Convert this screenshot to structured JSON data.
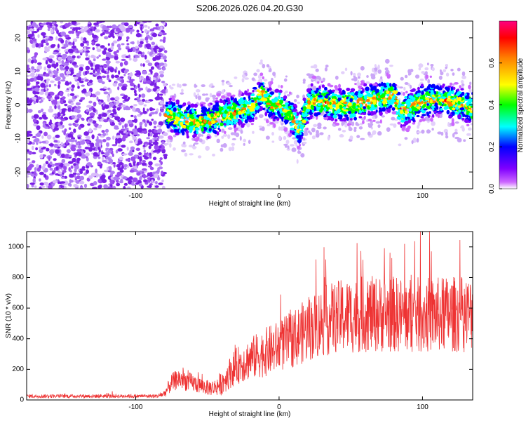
{
  "title": "S206.2026.026.04.20.G30",
  "chart_data": [
    {
      "type": "heatmap",
      "xlabel": "Height of straight line (km)",
      "ylabel": "Frequency (Hz)",
      "xlim": [
        -176,
        135
      ],
      "ylim": [
        -25,
        25
      ],
      "x_ticks": [
        -100,
        0,
        100
      ],
      "x_tick_labels": [
        "-100",
        "0",
        "100"
      ],
      "y_ticks": [
        -20,
        -10,
        0,
        10,
        20
      ],
      "y_tick_labels": [
        "-20",
        "-10",
        "0",
        "10",
        "20"
      ],
      "colorbar": {
        "label": "Normalized spectral amplitude",
        "range": [
          0,
          0.8
        ],
        "ticks": [
          0.0,
          0.2,
          0.4,
          0.6
        ],
        "tick_labels": [
          "0.0",
          "0.2",
          "0.4",
          "0.6"
        ],
        "colors": [
          "#ffffff",
          "#cc66ff",
          "#8000ff",
          "#0000ff",
          "#00ffff",
          "#00ff00",
          "#ffff00",
          "#ff8000",
          "#ff0000",
          "#ff0080"
        ]
      },
      "noise_region_x": [
        -176,
        -79
      ],
      "ridge_center": {
        "x": [
          -80,
          -70,
          -60,
          -50,
          -40,
          -30,
          -20,
          -15,
          -12,
          -8,
          -5,
          0,
          5,
          10,
          14,
          18,
          22,
          30,
          40,
          50,
          60,
          70,
          80,
          85,
          90,
          100,
          110,
          120,
          130,
          135
        ],
        "y": [
          -3,
          -4,
          -5,
          -5,
          -3,
          -2,
          -1,
          2,
          4,
          1,
          0,
          0,
          -2,
          -4,
          -8,
          -2,
          1,
          1,
          0,
          0,
          1,
          2,
          3,
          -2,
          -1,
          1,
          2,
          1,
          0,
          -1
        ]
      }
    },
    {
      "type": "line",
      "xlabel": "Height of straight line (km)",
      "ylabel": "SNR (10 * v/v)",
      "xlim": [
        -176,
        135
      ],
      "ylim": [
        0,
        1100
      ],
      "x_ticks": [
        -100,
        0,
        100
      ],
      "x_tick_labels": [
        "-100",
        "0",
        "100"
      ],
      "y_ticks": [
        0,
        200,
        400,
        600,
        800,
        1000
      ],
      "y_tick_labels": [
        "0",
        "200",
        "400",
        "600",
        "800",
        "1000"
      ],
      "color": "#ee3333",
      "envelope": {
        "x": [
          -176,
          -85,
          -80,
          -75,
          -70,
          -60,
          -50,
          -45,
          -40,
          -35,
          -30,
          -20,
          -10,
          0,
          10,
          20,
          30,
          40,
          50,
          60,
          70,
          80,
          90,
          100,
          110,
          120,
          130,
          135
        ],
        "mean": [
          25,
          25,
          40,
          110,
          140,
          110,
          80,
          80,
          110,
          170,
          220,
          270,
          310,
          350,
          400,
          460,
          510,
          540,
          550,
          560,
          560,
          560,
          550,
          555,
          555,
          560,
          560,
          560
        ],
        "spread": [
          12,
          12,
          25,
          60,
          70,
          60,
          50,
          55,
          80,
          100,
          120,
          140,
          160,
          170,
          190,
          210,
          230,
          240,
          250,
          250,
          250,
          250,
          250,
          250,
          250,
          250,
          250,
          240
        ]
      }
    }
  ]
}
